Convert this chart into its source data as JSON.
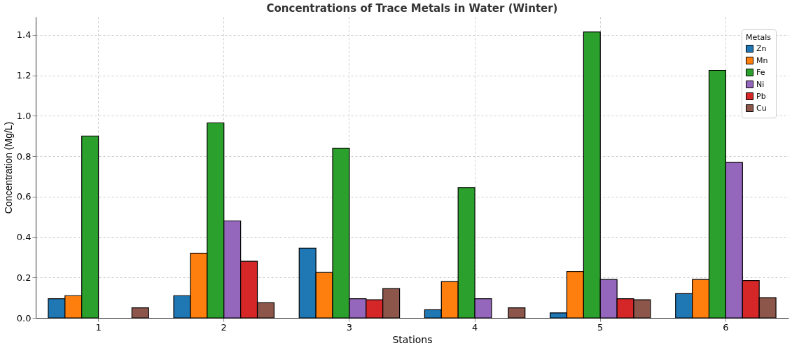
{
  "chart_data": {
    "type": "bar",
    "title": "Concentrations of Trace Metals in Water (Winter)",
    "xlabel": "Stations",
    "ylabel": "Concentration (Mg/L)",
    "legend_title": "Metals",
    "categories": [
      "1",
      "2",
      "3",
      "4",
      "5",
      "6"
    ],
    "series": [
      {
        "name": "Zn",
        "color": "#1f77b4",
        "values": [
          0.095,
          0.11,
          0.345,
          0.04,
          0.025,
          0.12
        ]
      },
      {
        "name": "Mn",
        "color": "#ff7f0e",
        "values": [
          0.11,
          0.32,
          0.225,
          0.18,
          0.23,
          0.19
        ]
      },
      {
        "name": "Fe",
        "color": "#2ca02c",
        "values": [
          0.9,
          0.965,
          0.84,
          0.645,
          1.415,
          1.225
        ]
      },
      {
        "name": "Ni",
        "color": "#9467bd",
        "values": [
          null,
          0.48,
          0.095,
          0.095,
          0.19,
          0.77
        ]
      },
      {
        "name": "Pb",
        "color": "#d62728",
        "values": [
          null,
          0.28,
          0.09,
          null,
          0.095,
          0.185
        ]
      },
      {
        "name": "Cu",
        "color": "#8c564b",
        "values": [
          0.05,
          0.075,
          0.145,
          0.05,
          0.09,
          0.1
        ]
      }
    ],
    "ylim": [
      0,
      1.49
    ],
    "yticks": [
      {
        "value": 0,
        "label": "0.0"
      },
      {
        "value": 0.2,
        "label": "0.2"
      },
      {
        "value": 0.4,
        "label": "0.4"
      },
      {
        "value": 0.6,
        "label": "0.6"
      },
      {
        "value": 0.8,
        "label": "0.8"
      },
      {
        "value": 1.0,
        "label": "1.0"
      },
      {
        "value": 1.2,
        "label": "1.2"
      },
      {
        "value": 1.4,
        "label": "1.4"
      }
    ],
    "grid": true,
    "legend": "top right"
  }
}
